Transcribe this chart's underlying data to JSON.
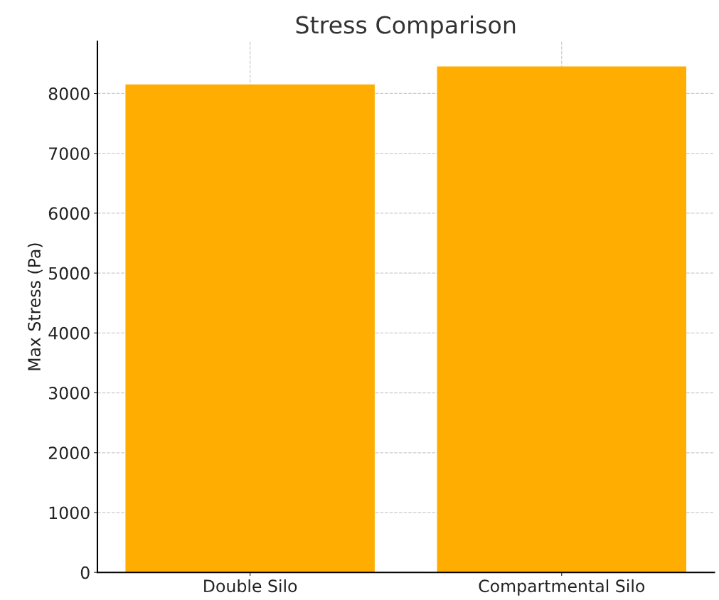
{
  "chart_data": {
    "type": "bar",
    "title": "Stress Comparison",
    "ylabel": "Max Stress (Pa)",
    "categories": [
      "Double Silo",
      "Compartmental Silo"
    ],
    "values": [
      8150,
      8450
    ],
    "color": "#ffad00",
    "ylim": [
      0,
      8870
    ],
    "yticks": [
      0,
      1000,
      2000,
      3000,
      4000,
      5000,
      6000,
      7000,
      8000
    ],
    "grid": true
  }
}
